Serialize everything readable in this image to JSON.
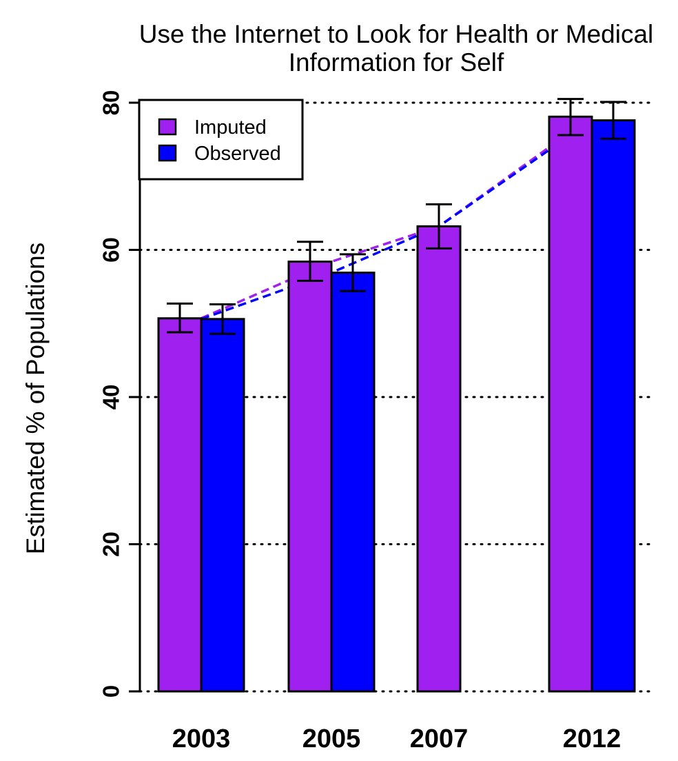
{
  "chart_data": {
    "type": "bar",
    "title": "Use the Internet to Look for Health or Medical Information for Self",
    "title_lines": [
      "Use the Internet to Look for Health or Medical",
      "Information for Self"
    ],
    "xlabel": "",
    "ylabel": "Estimated % of Populations",
    "categories": [
      "2003",
      "2005",
      "2007",
      "2012"
    ],
    "ylim": [
      0,
      80
    ],
    "yticks": [
      "0",
      "20",
      "40",
      "60",
      "80"
    ],
    "grid": "horizontal dotted",
    "legend": "top-left",
    "series": [
      {
        "name": "Imputed",
        "color": "#A020F0",
        "values": [
          50.7,
          58.4,
          63.2,
          78.1
        ],
        "ci_low": [
          48.8,
          55.8,
          60.2,
          75.6
        ],
        "ci_high": [
          52.7,
          61.1,
          66.2,
          80.5
        ]
      },
      {
        "name": "Observed",
        "color": "#0000FF",
        "values": [
          50.6,
          56.9,
          null,
          77.6
        ],
        "ci_low": [
          48.6,
          54.4,
          null,
          75.1
        ],
        "ci_high": [
          52.6,
          59.4,
          null,
          80.1
        ]
      }
    ],
    "trend_lines": [
      {
        "series": "Imputed",
        "style": "dashed",
        "color": "#A020F0",
        "x": [
          "2003",
          "2005",
          "2007",
          "2012"
        ],
        "y": [
          50.7,
          58.4,
          63.2,
          78.1
        ]
      },
      {
        "series": "Observed",
        "style": "dashed",
        "color": "#0000FF",
        "x": [
          "2003",
          "2005",
          "2007",
          "2012"
        ],
        "y": [
          50.6,
          56.9,
          63.2,
          77.6
        ]
      }
    ]
  }
}
